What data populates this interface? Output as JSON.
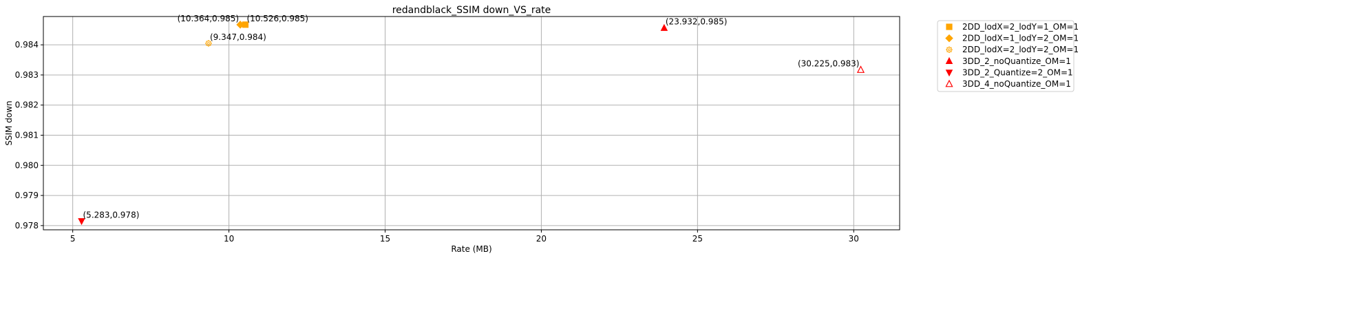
{
  "chart_data": {
    "type": "scatter",
    "title": "redandblack_SSIM down_VS_rate",
    "xlabel": "Rate (MB)",
    "ylabel": "SSIM down",
    "xlim": [
      4.06,
      31.47
    ],
    "ylim": [
      0.97786,
      0.98494
    ],
    "xticks": [
      5,
      10,
      15,
      20,
      25,
      30
    ],
    "yticks": [
      0.978,
      0.979,
      0.98,
      0.981,
      0.982,
      0.983,
      0.984
    ],
    "ytick_labels": [
      "0.978",
      "0.979",
      "0.980",
      "0.981",
      "0.982",
      "0.983",
      "0.984"
    ],
    "grid": true,
    "legend_position": "outside-right",
    "series": [
      {
        "name": "2DD_lodX=2_lodY=1_OM=1",
        "marker": "square",
        "color": "#FFA500",
        "filled": true,
        "points": [
          {
            "x": 10.526,
            "y": 0.98467,
            "label": "(10.526,0.985)"
          }
        ]
      },
      {
        "name": "2DD_lodX=1_lodY=2_OM=1",
        "marker": "diamond",
        "color": "#FFA500",
        "filled": true,
        "points": [
          {
            "x": 10.364,
            "y": 0.98467,
            "label": "(10.364,0.985)"
          }
        ]
      },
      {
        "name": "2DD_lodX=2_lodY=2_OM=1",
        "marker": "gear",
        "color": "#FFA500",
        "filled": false,
        "points": [
          {
            "x": 9.347,
            "y": 0.98405,
            "label": "(9.347,0.984)"
          }
        ]
      },
      {
        "name": "3DD_2_noQuantize_OM=1",
        "marker": "triangle-up",
        "color": "#FF0000",
        "filled": true,
        "points": [
          {
            "x": 23.932,
            "y": 0.98456,
            "label": "(23.932,0.985)"
          }
        ]
      },
      {
        "name": "3DD_2_Quantize=2_OM=1",
        "marker": "triangle-down",
        "color": "#FF0000",
        "filled": true,
        "points": [
          {
            "x": 5.283,
            "y": 0.97815,
            "label": "(5.283,0.978)"
          }
        ]
      },
      {
        "name": "3DD_4_noQuantize_OM=1",
        "marker": "triangle-up",
        "color": "#FF0000",
        "filled": false,
        "points": [
          {
            "x": 30.225,
            "y": 0.98317,
            "label": "(30.225,0.983)"
          }
        ]
      }
    ]
  }
}
